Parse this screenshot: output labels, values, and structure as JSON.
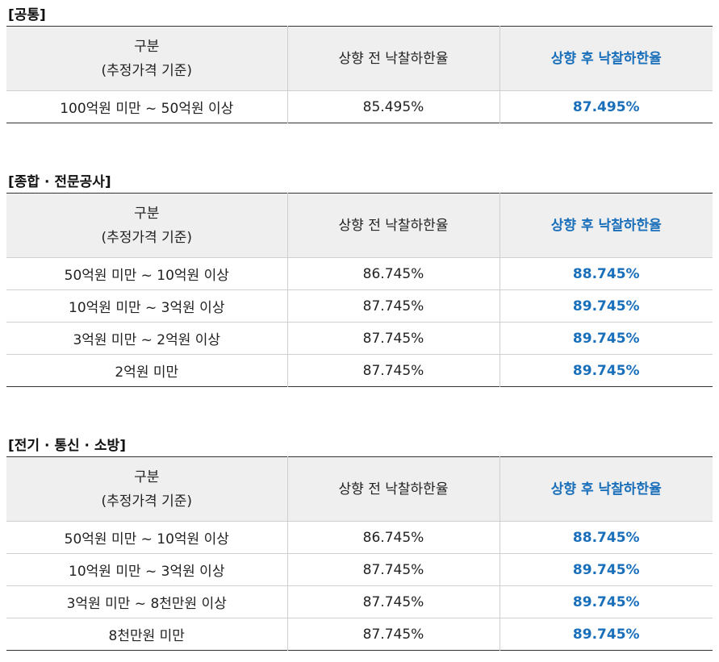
{
  "header": {
    "category_line1": "구분",
    "category_line2": "(추정가격 기준)",
    "before": "상향 전 낙찰하한율",
    "after": "상향 후 낙찰하한율"
  },
  "colors": {
    "accent": "#1a6fba",
    "header_bg": "#efefef"
  },
  "sections": [
    {
      "title": "[공통]",
      "rows": [
        {
          "range": "100억원 미만 ~ 50억원 이상",
          "before": "85.495%",
          "after": "87.495%"
        }
      ]
    },
    {
      "title": "[종합 · 전문공사]",
      "rows": [
        {
          "range": "50억원 미만 ~ 10억원 이상",
          "before": "86.745%",
          "after": "88.745%"
        },
        {
          "range": "10억원 미만 ~ 3억원 이상",
          "before": "87.745%",
          "after": "89.745%"
        },
        {
          "range": "3억원 미만 ~ 2억원 이상",
          "before": "87.745%",
          "after": "89.745%"
        },
        {
          "range": "2억원 미만",
          "before": "87.745%",
          "after": "89.745%"
        }
      ]
    },
    {
      "title": "[전기 · 통신 · 소방]",
      "rows": [
        {
          "range": "50억원 미만 ~ 10억원 이상",
          "before": "86.745%",
          "after": "88.745%"
        },
        {
          "range": "10억원 미만 ~ 3억원 이상",
          "before": "87.745%",
          "after": "89.745%"
        },
        {
          "range": "3억원 미만 ~ 8천만원 이상",
          "before": "87.745%",
          "after": "89.745%"
        },
        {
          "range": "8천만원 미만",
          "before": "87.745%",
          "after": "89.745%"
        }
      ]
    }
  ]
}
